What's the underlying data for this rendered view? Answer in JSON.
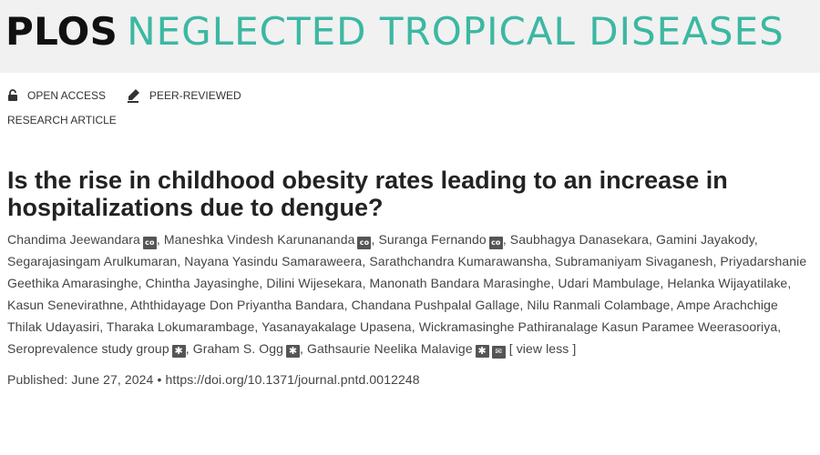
{
  "header": {
    "brand": "PLOS",
    "journal": "NEGLECTED TROPICAL DISEASES"
  },
  "access": {
    "open_access": "OPEN ACCESS",
    "peer_reviewed": "PEER-REVIEWED"
  },
  "article": {
    "type": "RESEARCH ARTICLE",
    "title": "Is the rise in childhood obesity rates leading to an increase in hospitalizations due to dengue?"
  },
  "authors": [
    {
      "name": "Chandima Jeewandara",
      "badges": [
        "co"
      ]
    },
    {
      "name": "Maneshka Vindesh Karunananda",
      "badges": [
        "co"
      ]
    },
    {
      "name": "Suranga Fernando",
      "badges": [
        "co"
      ]
    },
    {
      "name": "Saubhagya Danasekara",
      "badges": []
    },
    {
      "name": "Gamini Jayakody",
      "badges": []
    },
    {
      "name": "Segarajasingam Arulkumaran",
      "badges": []
    },
    {
      "name": "Nayana Yasindu Samaraweera",
      "badges": []
    },
    {
      "name": "Sarathchandra Kumarawansha",
      "badges": []
    },
    {
      "name": "Subramaniyam Sivaganesh",
      "badges": []
    },
    {
      "name": "Priyadarshanie Geethika Amarasinghe",
      "badges": []
    },
    {
      "name": "Chintha Jayasinghe",
      "badges": []
    },
    {
      "name": "Dilini Wijesekara",
      "badges": []
    },
    {
      "name": "Manonath Bandara Marasinghe",
      "badges": []
    },
    {
      "name": "Udari Mambulage",
      "badges": []
    },
    {
      "name": "Helanka Wijayatilake",
      "badges": []
    },
    {
      "name": "Kasun Senevirathne",
      "badges": []
    },
    {
      "name": "Aththidayage Don Priyantha Bandara",
      "badges": []
    },
    {
      "name": "Chandana Pushpalal Gallage",
      "badges": []
    },
    {
      "name": "Nilu Ranmali Colambage",
      "badges": []
    },
    {
      "name": "Ampe Arachchige Thilak Udayasiri",
      "badges": []
    },
    {
      "name": "Tharaka Lokumarambage",
      "badges": []
    },
    {
      "name": "Yasanayakalage Upasena",
      "badges": []
    },
    {
      "name": "Wickramasinghe Pathiranalage Kasun Paramee Weerasooriya",
      "badges": []
    },
    {
      "name": "Seroprevalence study group",
      "badges": [
        "star"
      ]
    },
    {
      "name": "Graham S. Ogg",
      "badges": [
        "star"
      ]
    },
    {
      "name": "Gathsaurie Neelika Malavige",
      "badges": [
        "star",
        "mail"
      ]
    }
  ],
  "badge_glyphs": {
    "co": "co",
    "star": "✱",
    "mail": "✉"
  },
  "view_less": "[ view less ]",
  "publication": {
    "published_label": "Published:",
    "date": "June 27, 2024",
    "bullet": "•",
    "doi": "https://doi.org/10.1371/journal.pntd.0012248"
  }
}
